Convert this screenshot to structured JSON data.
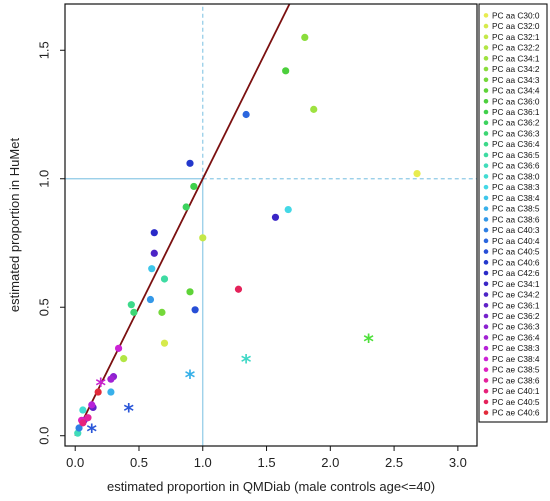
{
  "chart_data": {
    "type": "scatter",
    "xlabel": "estimated proportion in QMDiab (male controls age<=40)",
    "ylabel": "estimated proportion in HuMet",
    "xlim": [
      -0.08,
      3.15
    ],
    "ylim": [
      -0.04,
      1.68
    ],
    "x_ticks": [
      "0.0",
      "0.5",
      "1.0",
      "1.5",
      "2.0",
      "2.5",
      "3.0"
    ],
    "x_tick_values": [
      0,
      0.5,
      1,
      1.5,
      2,
      2.5,
      3
    ],
    "y_ticks": [
      "0.0",
      "0.5",
      "1.0",
      "1.5"
    ],
    "y_tick_values": [
      0,
      0.5,
      1,
      1.5
    ],
    "reference_lines": {
      "x": 1.0,
      "y": 1.0,
      "color": "#8ecae6"
    },
    "diagonal": {
      "slope": 1.0,
      "color": "#7b1010"
    },
    "legend_position": "right",
    "series": [
      {
        "name": "PC aa C30:0",
        "color": "#e8ec50",
        "marker": "circle",
        "points": [
          [
            2.68,
            1.02
          ]
        ]
      },
      {
        "name": "PC aa C32:0",
        "color": "#d6ea4c",
        "marker": "circle",
        "points": [
          [
            0.7,
            0.36
          ]
        ]
      },
      {
        "name": "PC aa C32:1",
        "color": "#c4e848",
        "marker": "circle",
        "points": [
          [
            1.0,
            0.77
          ]
        ]
      },
      {
        "name": "PC aa C32:2",
        "color": "#b2e644",
        "marker": "circle",
        "points": [
          [
            0.38,
            0.3
          ]
        ]
      },
      {
        "name": "PC aa C34:1",
        "color": "#9ee240",
        "marker": "circle",
        "points": [
          [
            1.87,
            1.27
          ]
        ]
      },
      {
        "name": "PC aa C34:2",
        "color": "#8add3c",
        "marker": "circle",
        "points": [
          [
            1.8,
            1.55
          ]
        ]
      },
      {
        "name": "PC aa C34:3",
        "color": "#74d83a",
        "marker": "circle",
        "points": [
          [
            0.68,
            0.48
          ]
        ]
      },
      {
        "name": "PC aa C34:4",
        "color": "#5ed338",
        "marker": "circle",
        "points": [
          [
            0.9,
            0.56
          ]
        ]
      },
      {
        "name": "PC aa C36:0",
        "color": "#4ccf3c",
        "marker": "circle",
        "points": [
          [
            1.65,
            1.42
          ]
        ]
      },
      {
        "name": "PC aa C36:1",
        "color": "#3fd04a",
        "marker": "circle",
        "points": [
          [
            0.93,
            0.97
          ]
        ]
      },
      {
        "name": "PC aa C36:2",
        "color": "#3cd35e",
        "marker": "circle",
        "points": [
          [
            0.87,
            0.89
          ]
        ]
      },
      {
        "name": "PC aa C36:3",
        "color": "#3cd673",
        "marker": "circle",
        "points": [
          [
            0.46,
            0.48
          ]
        ]
      },
      {
        "name": "PC aa C36:4",
        "color": "#3dd98a",
        "marker": "circle",
        "points": [
          [
            0.44,
            0.51
          ]
        ]
      },
      {
        "name": "PC aa C36:5",
        "color": "#3edba2",
        "marker": "circle",
        "points": [
          [
            0.7,
            0.61
          ]
        ]
      },
      {
        "name": "PC aa C36:6",
        "color": "#40dcba",
        "marker": "circle",
        "points": [
          [
            0.02,
            0.01
          ]
        ]
      },
      {
        "name": "PC aa C38:0",
        "color": "#42dcd2",
        "marker": "circle",
        "points": [
          [
            0.06,
            0.1
          ]
        ]
      },
      {
        "name": "PC aa C38:3",
        "color": "#44d8e6",
        "marker": "circle",
        "points": [
          [
            1.67,
            0.88
          ]
        ]
      },
      {
        "name": "PC aa C38:4",
        "color": "#3ec6ea",
        "marker": "circle",
        "points": [
          [
            0.6,
            0.65
          ]
        ]
      },
      {
        "name": "PC aa C38:5",
        "color": "#38b0ea",
        "marker": "circle",
        "points": [
          [
            0.28,
            0.17
          ]
        ]
      },
      {
        "name": "PC aa C38:6",
        "color": "#3498e8",
        "marker": "circle",
        "points": [
          [
            0.59,
            0.53
          ]
        ]
      },
      {
        "name": "PC aa C40:3",
        "color": "#2f7fe4",
        "marker": "circle",
        "points": [
          [
            0.03,
            0.03
          ]
        ]
      },
      {
        "name": "PC aa C40:4",
        "color": "#2b66de",
        "marker": "circle",
        "points": [
          [
            1.34,
            1.25
          ]
        ]
      },
      {
        "name": "PC aa C40:5",
        "color": "#274ed6",
        "marker": "circle",
        "points": [
          [
            0.94,
            0.49
          ]
        ]
      },
      {
        "name": "PC aa C40:6",
        "color": "#2338cc",
        "marker": "circle",
        "points": [
          [
            0.9,
            1.06
          ]
        ]
      },
      {
        "name": "PC aa C42:6",
        "color": "#2a2ac8",
        "marker": "circle",
        "points": [
          [
            0.62,
            0.79
          ]
        ]
      },
      {
        "name": "PC ae C34:1",
        "color": "#3a26c6",
        "marker": "circle",
        "points": [
          [
            1.57,
            0.85
          ]
        ]
      },
      {
        "name": "PC ae C34:2",
        "color": "#4c24c6",
        "marker": "circle",
        "points": [
          [
            0.62,
            0.71
          ]
        ]
      },
      {
        "name": "PC ae C36:1",
        "color": "#6022c8",
        "marker": "circle",
        "points": [
          [
            0.14,
            0.11
          ]
        ]
      },
      {
        "name": "PC ae C36:2",
        "color": "#7522cc",
        "marker": "circle",
        "points": [
          [
            0.07,
            0.06
          ]
        ]
      },
      {
        "name": "PC ae C36:3",
        "color": "#8b22d0",
        "marker": "circle",
        "points": [
          [
            0.3,
            0.23
          ]
        ]
      },
      {
        "name": "PC ae C36:4",
        "color": "#a222d4",
        "marker": "circle",
        "points": [
          [
            0.28,
            0.22
          ]
        ]
      },
      {
        "name": "PC ae C38:3",
        "color": "#b622d8",
        "marker": "circle",
        "points": [
          [
            0.13,
            0.12
          ]
        ]
      },
      {
        "name": "PC ae C38:4",
        "color": "#cc22d6",
        "marker": "circle",
        "points": [
          [
            0.34,
            0.34
          ]
        ]
      },
      {
        "name": "PC ae C38:5",
        "color": "#de22c2",
        "marker": "circle",
        "points": [
          [
            0.05,
            0.06
          ]
        ]
      },
      {
        "name": "PC ae C38:6",
        "color": "#e4229c",
        "marker": "circle",
        "points": [
          [
            0.1,
            0.07
          ]
        ]
      },
      {
        "name": "PC ae C40:1",
        "color": "#e6227a",
        "marker": "circle",
        "points": [
          [
            0.06,
            0.05
          ]
        ]
      },
      {
        "name": "PC ae C40:5",
        "color": "#e4225a",
        "marker": "circle",
        "points": [
          [
            1.28,
            0.57
          ]
        ]
      },
      {
        "name": "PC ae C40:6",
        "color": "#e22a3a",
        "marker": "circle",
        "points": [
          [
            0.18,
            0.17
          ]
        ]
      },
      {
        "name": "",
        "color": "#4ee03a",
        "marker": "star",
        "points": [
          [
            2.3,
            0.37
          ]
        ]
      },
      {
        "name": "",
        "color": "#40d8c6",
        "marker": "star",
        "points": [
          [
            1.34,
            0.29
          ]
        ]
      },
      {
        "name": "",
        "color": "#36b0e8",
        "marker": "star",
        "points": [
          [
            0.9,
            0.23
          ]
        ]
      },
      {
        "name": "",
        "color": "#2a56d8",
        "marker": "star",
        "points": [
          [
            0.42,
            0.1
          ],
          [
            0.13,
            0.02
          ]
        ]
      },
      {
        "name": "",
        "color": "#c822d0",
        "marker": "star",
        "points": [
          [
            0.2,
            0.2
          ]
        ]
      }
    ]
  }
}
